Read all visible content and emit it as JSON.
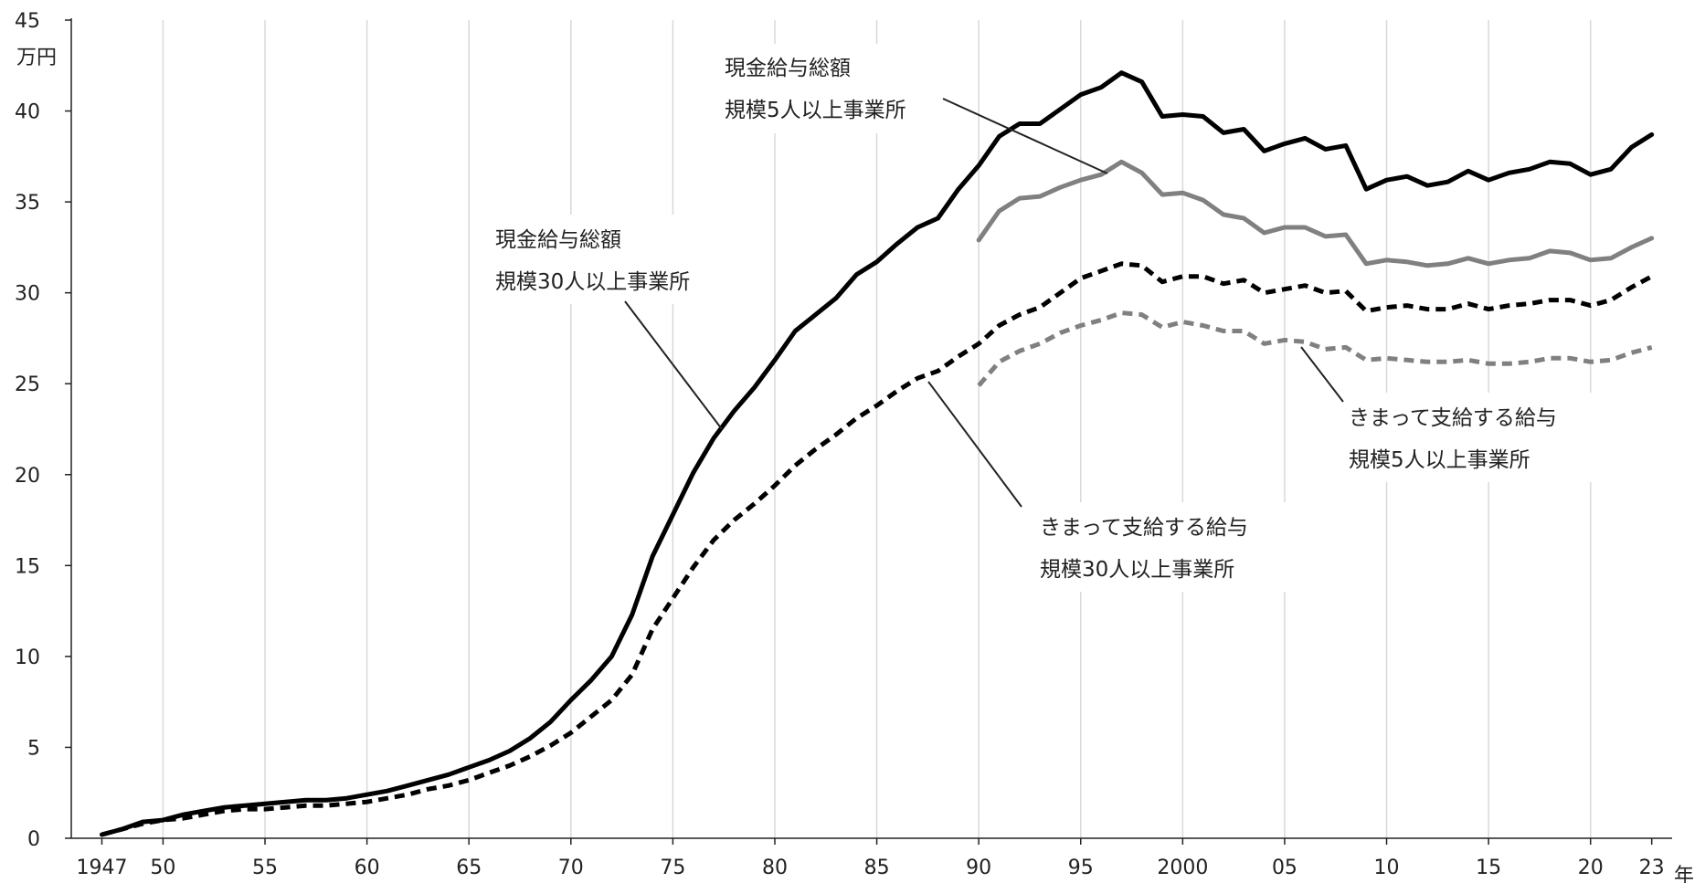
{
  "chart_data": {
    "type": "line",
    "y_unit": "万円",
    "x_unit": "年",
    "ylim": [
      0,
      45
    ],
    "y_ticks": [
      "0",
      "5",
      "10",
      "15",
      "20",
      "25",
      "30",
      "35",
      "40",
      "45"
    ],
    "x_ticks": [
      {
        "year": 1947,
        "label": "1947"
      },
      {
        "year": 1950,
        "label": "50"
      },
      {
        "year": 1955,
        "label": "55"
      },
      {
        "year": 1960,
        "label": "60"
      },
      {
        "year": 1965,
        "label": "65"
      },
      {
        "year": 1970,
        "label": "70"
      },
      {
        "year": 1975,
        "label": "75"
      },
      {
        "year": 1980,
        "label": "80"
      },
      {
        "year": 1985,
        "label": "85"
      },
      {
        "year": 1990,
        "label": "90"
      },
      {
        "year": 1995,
        "label": "95"
      },
      {
        "year": 2000,
        "label": "2000"
      },
      {
        "year": 2005,
        "label": "05"
      },
      {
        "year": 2010,
        "label": "10"
      },
      {
        "year": 2015,
        "label": "15"
      },
      {
        "year": 2020,
        "label": "20"
      },
      {
        "year": 2023,
        "label": "23"
      }
    ],
    "grid": "vertical",
    "series": [
      {
        "key": "total30",
        "line1": "現金給与総額",
        "line2": "規模30人以上事業所",
        "color": "#000000",
        "style": "solid",
        "x": [
          1947,
          1948,
          1949,
          1950,
          1951,
          1952,
          1953,
          1954,
          1955,
          1956,
          1957,
          1958,
          1959,
          1960,
          1961,
          1962,
          1963,
          1964,
          1965,
          1966,
          1967,
          1968,
          1969,
          1970,
          1971,
          1972,
          1973,
          1974,
          1975,
          1976,
          1977,
          1978,
          1979,
          1980,
          1981,
          1982,
          1983,
          1984,
          1985,
          1986,
          1987,
          1988,
          1989,
          1990,
          1991,
          1992,
          1993,
          1994,
          1995,
          1996,
          1997,
          1998,
          1999,
          2000,
          2001,
          2002,
          2003,
          2004,
          2005,
          2006,
          2007,
          2008,
          2009,
          2010,
          2011,
          2012,
          2013,
          2014,
          2015,
          2016,
          2017,
          2018,
          2019,
          2020,
          2021,
          2022,
          2023
        ],
        "values": [
          0.2,
          0.5,
          0.9,
          1.0,
          1.3,
          1.5,
          1.7,
          1.8,
          1.9,
          2.0,
          2.1,
          2.1,
          2.2,
          2.4,
          2.6,
          2.9,
          3.2,
          3.5,
          3.9,
          4.3,
          4.8,
          5.5,
          6.4,
          7.6,
          8.7,
          10.0,
          12.3,
          15.5,
          17.8,
          20.1,
          22.0,
          23.5,
          24.8,
          26.3,
          27.9,
          28.8,
          29.7,
          31.0,
          31.7,
          32.7,
          33.6,
          34.1,
          35.7,
          37.0,
          38.6,
          39.3,
          39.3,
          40.1,
          40.9,
          41.3,
          42.1,
          41.6,
          39.7,
          39.8,
          39.7,
          38.8,
          39.0,
          37.8,
          38.2,
          38.5,
          37.9,
          38.1,
          35.7,
          36.2,
          36.4,
          35.9,
          36.1,
          36.7,
          36.2,
          36.6,
          36.8,
          37.2,
          37.1,
          36.5,
          36.8,
          38.0,
          38.7
        ]
      },
      {
        "key": "regular30",
        "line1": "きまって支給する給与",
        "line2": "規模30人以上事業所",
        "color": "#000000",
        "style": "dashed",
        "x": [
          1947,
          1948,
          1949,
          1950,
          1951,
          1952,
          1953,
          1954,
          1955,
          1956,
          1957,
          1958,
          1959,
          1960,
          1961,
          1962,
          1963,
          1964,
          1965,
          1966,
          1967,
          1968,
          1969,
          1970,
          1971,
          1972,
          1973,
          1974,
          1975,
          1976,
          1977,
          1978,
          1979,
          1980,
          1981,
          1982,
          1983,
          1984,
          1985,
          1986,
          1987,
          1988,
          1989,
          1990,
          1991,
          1992,
          1993,
          1994,
          1995,
          1996,
          1997,
          1998,
          1999,
          2000,
          2001,
          2002,
          2003,
          2004,
          2005,
          2006,
          2007,
          2008,
          2009,
          2010,
          2011,
          2012,
          2013,
          2014,
          2015,
          2016,
          2017,
          2018,
          2019,
          2020,
          2021,
          2022,
          2023
        ],
        "values": [
          0.2,
          0.5,
          0.8,
          1.0,
          1.1,
          1.3,
          1.5,
          1.6,
          1.6,
          1.7,
          1.8,
          1.8,
          1.9,
          2.0,
          2.2,
          2.4,
          2.7,
          2.9,
          3.2,
          3.6,
          4.0,
          4.5,
          5.1,
          5.8,
          6.7,
          7.6,
          9.0,
          11.5,
          13.2,
          14.9,
          16.4,
          17.5,
          18.4,
          19.4,
          20.5,
          21.4,
          22.2,
          23.1,
          23.8,
          24.6,
          25.3,
          25.7,
          26.5,
          27.2,
          28.2,
          28.8,
          29.2,
          30.0,
          30.8,
          31.2,
          31.6,
          31.5,
          30.6,
          30.9,
          30.9,
          30.5,
          30.7,
          30.0,
          30.2,
          30.4,
          30.0,
          30.1,
          29.0,
          29.2,
          29.3,
          29.1,
          29.1,
          29.4,
          29.1,
          29.3,
          29.4,
          29.6,
          29.6,
          29.3,
          29.6,
          30.3,
          30.9
        ]
      },
      {
        "key": "total5",
        "line1": "現金給与総額",
        "line2": "規模5人以上事業所",
        "color": "#808080",
        "style": "solid",
        "x": [
          1990,
          1991,
          1992,
          1993,
          1994,
          1995,
          1996,
          1997,
          1998,
          1999,
          2000,
          2001,
          2002,
          2003,
          2004,
          2005,
          2006,
          2007,
          2008,
          2009,
          2010,
          2011,
          2012,
          2013,
          2014,
          2015,
          2016,
          2017,
          2018,
          2019,
          2020,
          2021,
          2022,
          2023
        ],
        "values": [
          32.9,
          34.5,
          35.2,
          35.3,
          35.8,
          36.2,
          36.5,
          37.2,
          36.6,
          35.4,
          35.5,
          35.1,
          34.3,
          34.1,
          33.3,
          33.6,
          33.6,
          33.1,
          33.2,
          31.6,
          31.8,
          31.7,
          31.5,
          31.6,
          31.9,
          31.6,
          31.8,
          31.9,
          32.3,
          32.2,
          31.8,
          31.9,
          32.5,
          33.0
        ]
      },
      {
        "key": "regular5",
        "line1": "きまって支給する給与",
        "line2": "規模5人以上事業所",
        "color": "#808080",
        "style": "dashed",
        "x": [
          1990,
          1991,
          1992,
          1993,
          1994,
          1995,
          1996,
          1997,
          1998,
          1999,
          2000,
          2001,
          2002,
          2003,
          2004,
          2005,
          2006,
          2007,
          2008,
          2009,
          2010,
          2011,
          2012,
          2013,
          2014,
          2015,
          2016,
          2017,
          2018,
          2019,
          2020,
          2021,
          2022,
          2023
        ],
        "values": [
          24.9,
          26.2,
          26.8,
          27.2,
          27.8,
          28.2,
          28.5,
          28.9,
          28.8,
          28.1,
          28.4,
          28.2,
          27.9,
          27.9,
          27.2,
          27.4,
          27.3,
          26.9,
          27.0,
          26.3,
          26.4,
          26.3,
          26.2,
          26.2,
          26.3,
          26.1,
          26.1,
          26.2,
          26.4,
          26.4,
          26.2,
          26.3,
          26.7,
          27.0
        ]
      }
    ]
  }
}
